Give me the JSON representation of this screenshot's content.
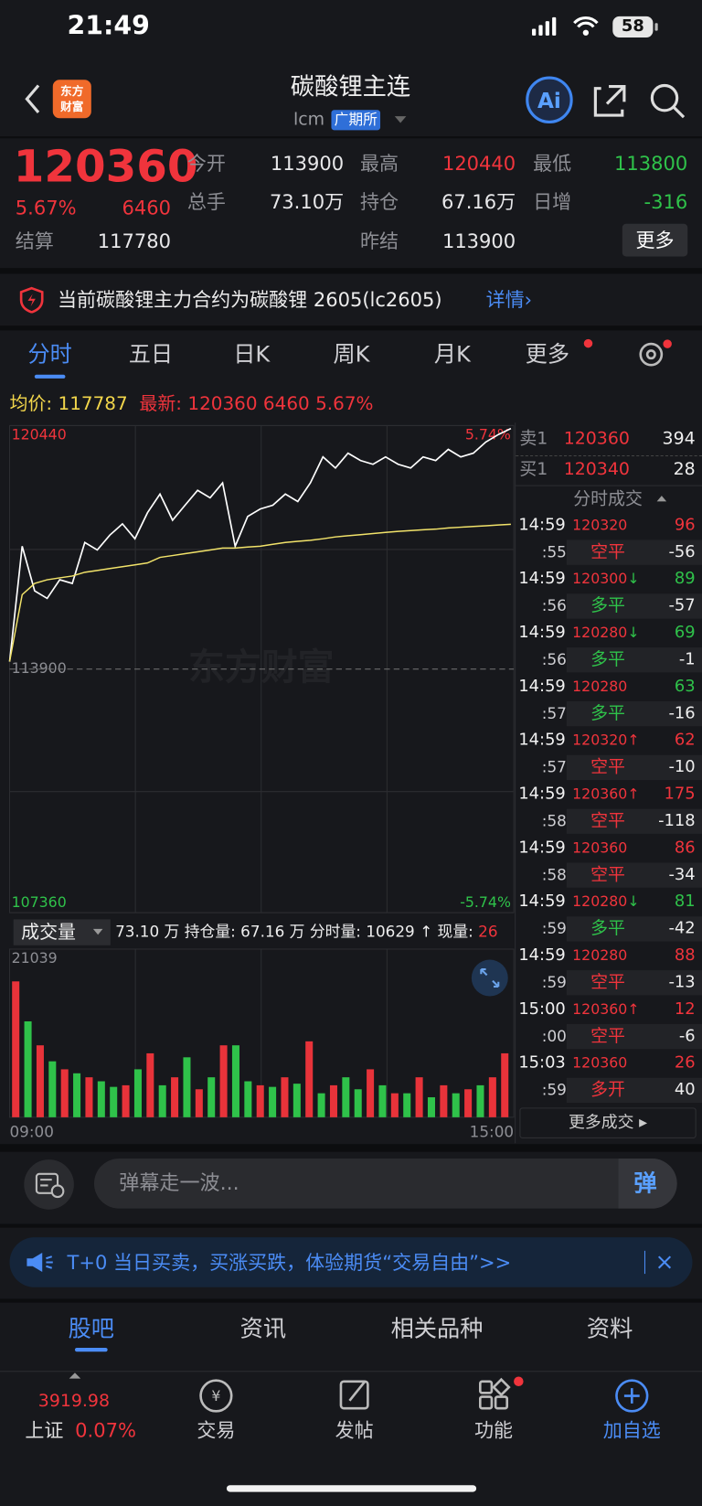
{
  "status_bar": {
    "time": "21:49",
    "battery": "58"
  },
  "header": {
    "logo": [
      "东方",
      "财富"
    ],
    "title": "碳酸锂主连",
    "code": "lcm",
    "exchange": "广期所"
  },
  "quote": {
    "price": "120360",
    "change_pct": "5.67%",
    "change": "6460",
    "settle_label": "结算",
    "settle": "117780",
    "stats": [
      {
        "label": "今开",
        "value": "113900"
      },
      {
        "label": "最高",
        "value": "120440"
      },
      {
        "label": "最低",
        "value": "113800"
      },
      {
        "label": "总手",
        "value": "73.10万"
      },
      {
        "label": "持仓",
        "value": "67.16万"
      },
      {
        "label": "日增",
        "value": "-316"
      },
      {
        "label": "昨结",
        "value": "113900"
      }
    ],
    "more": "更多"
  },
  "notice": {
    "text": "当前碳酸锂主力合约为碳酸锂 2605(lc2605)",
    "link": "详情›"
  },
  "tabs": [
    "分时",
    "五日",
    "日K",
    "周K",
    "月K",
    "更多"
  ],
  "summary": {
    "avg_label": "均价:",
    "avg": "117787",
    "latest_label": "最新:",
    "latest": "120360",
    "change": "6460",
    "change_pct": "5.67%"
  },
  "watermark": "东方财富",
  "chart_data": [
    {
      "type": "line",
      "ylim": [
        107360,
        120440
      ],
      "yticks": [
        107360,
        113900,
        120440
      ],
      "y2lim": [
        -5.74,
        5.74
      ],
      "y2ticks": [
        {
          "value": -5.74,
          "label": "-5.74%"
        },
        {
          "value": 5.74,
          "label": "5.74%"
        }
      ],
      "series": [
        {
          "color": "#ffffff",
          "values": [
            114100,
            117200,
            116000,
            115800,
            116300,
            116200,
            117300,
            117100,
            117500,
            117800,
            117400,
            118100,
            118600,
            117900,
            118300,
            118700,
            118500,
            118900,
            117200,
            118000,
            118200,
            118300,
            118600,
            118400,
            118900,
            119600,
            119300,
            119700,
            119500,
            119400,
            119600,
            119400,
            119300,
            119600,
            119500,
            119800,
            119600,
            119700,
            120000,
            120200,
            120360
          ]
        },
        {
          "color": "#f2e36a",
          "values": [
            114100,
            115900,
            116200,
            116300,
            116350,
            116400,
            116500,
            116550,
            116600,
            116650,
            116700,
            116750,
            116900,
            116950,
            117000,
            117050,
            117100,
            117150,
            117150,
            117180,
            117200,
            117250,
            117300,
            117330,
            117360,
            117400,
            117450,
            117480,
            117510,
            117540,
            117570,
            117600,
            117620,
            117640,
            117660,
            117690,
            117710,
            117730,
            117750,
            117770,
            117787
          ]
        }
      ]
    },
    {
      "type": "bar",
      "title": "成交量",
      "ylim": [
        0,
        21039
      ],
      "yticks": [
        21039
      ],
      "categories": [
        "09:00",
        null,
        null,
        null,
        null,
        null,
        null,
        null,
        null,
        null,
        null,
        null,
        null,
        null,
        null,
        null,
        null,
        null,
        null,
        null,
        null,
        null,
        null,
        null,
        null,
        null,
        null,
        null,
        null,
        null,
        null,
        null,
        null,
        null,
        null,
        null,
        null,
        null,
        null,
        null,
        "15:00"
      ],
      "series": [
        {
          "color": "#e8333a",
          "values": [
            17000,
            null,
            9000,
            null,
            6000,
            null,
            5000,
            null,
            null,
            4000,
            null,
            8000,
            null,
            5000,
            null,
            3500,
            null,
            9000,
            null,
            null,
            4000,
            null,
            5000,
            null,
            9500,
            null,
            4000,
            null,
            null,
            6000,
            null,
            3000,
            null,
            5000,
            null,
            4000,
            null,
            3500,
            null,
            5000,
            8000
          ]
        },
        {
          "color": "#2fc24a",
          "values": [
            null,
            12000,
            null,
            7000,
            null,
            5500,
            null,
            4500,
            3800,
            null,
            6000,
            null,
            4000,
            null,
            7500,
            null,
            5000,
            null,
            9000,
            4500,
            null,
            3800,
            null,
            4200,
            null,
            3000,
            null,
            5000,
            3500,
            null,
            4000,
            null,
            3000,
            null,
            2500,
            null,
            3000,
            null,
            4000,
            null,
            null
          ]
        }
      ]
    }
  ],
  "volume_bar": {
    "total": "73.10 万",
    "oi_label": "持仓量:",
    "oi": "67.16 万",
    "period_label": "分时量:",
    "period": "10629 ↑",
    "current_label": "现量:",
    "current": "26"
  },
  "order_book": [
    {
      "side": "卖1",
      "price": "120360",
      "volume": "394"
    },
    {
      "side": "买1",
      "price": "120340",
      "volume": "28"
    }
  ],
  "trades_title": "分时成交",
  "trades": [
    {
      "time": "14:59",
      "price": "120320",
      "arrow": "",
      "volume": "96",
      "second": ":55",
      "action": "空平",
      "oi_change": "-56"
    },
    {
      "time": "14:59",
      "price": "120300",
      "arrow": "↓",
      "volume": "89",
      "second": ":56",
      "action": "多平",
      "oi_change": "-57"
    },
    {
      "time": "14:59",
      "price": "120280",
      "arrow": "↓",
      "volume": "69",
      "second": ":56",
      "action": "多平",
      "oi_change": "-1"
    },
    {
      "time": "14:59",
      "price": "120280",
      "arrow": "",
      "volume": "63",
      "second": ":57",
      "action": "多平",
      "oi_change": "-16"
    },
    {
      "time": "14:59",
      "price": "120320",
      "arrow": "↑",
      "volume": "62",
      "second": ":57",
      "action": "空平",
      "oi_change": "-10"
    },
    {
      "time": "14:59",
      "price": "120360",
      "arrow": "↑",
      "volume": "175",
      "second": ":58",
      "action": "空平",
      "oi_change": "-118"
    },
    {
      "time": "14:59",
      "price": "120360",
      "arrow": "",
      "volume": "86",
      "second": ":58",
      "action": "空平",
      "oi_change": "-34"
    },
    {
      "time": "14:59",
      "price": "120280",
      "arrow": "↓",
      "volume": "81",
      "second": ":59",
      "action": "多平",
      "oi_change": "-42"
    },
    {
      "time": "14:59",
      "price": "120280",
      "arrow": "",
      "volume": "88",
      "second": ":59",
      "action": "空平",
      "oi_change": "-13"
    },
    {
      "time": "15:00",
      "price": "120360",
      "arrow": "↑",
      "volume": "12",
      "second": ":00",
      "action": "空平",
      "oi_change": "-6"
    },
    {
      "time": "15:03",
      "price": "120360",
      "arrow": "",
      "volume": "26",
      "second": ":59",
      "action": "多开",
      "oi_change": "40"
    }
  ],
  "more_trades": "更多成交 ▸",
  "danmu": {
    "placeholder": "弹幕走一波...",
    "button": "弹"
  },
  "banner": "T+0 当日买卖，买涨买跌，体验期货“交易自由”>>",
  "sections": [
    "股吧",
    "资讯",
    "相关品种",
    "资料"
  ],
  "nav": {
    "index_value": "3919.98",
    "index_name": "上证",
    "index_change": "0.07%",
    "items": [
      "交易",
      "发帖",
      "功能",
      "加自选"
    ]
  }
}
